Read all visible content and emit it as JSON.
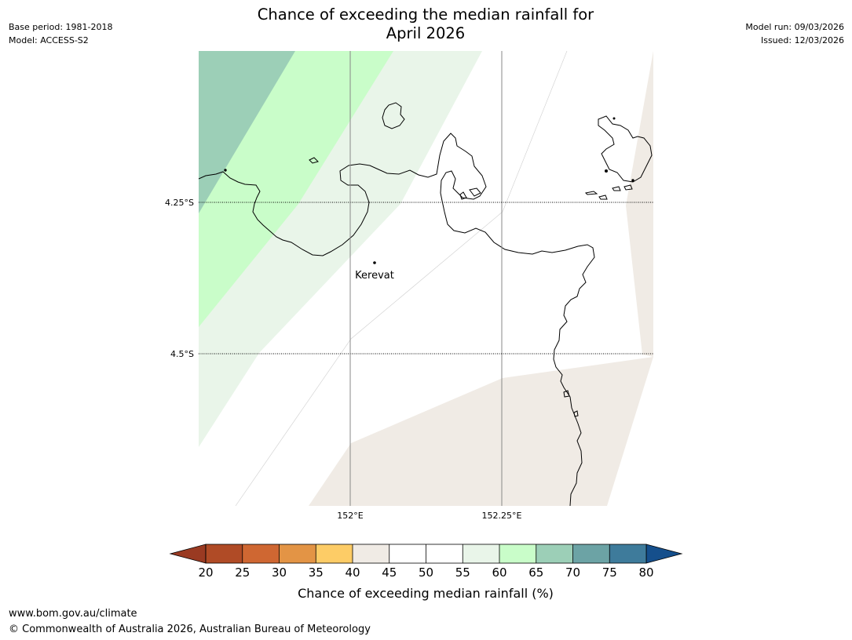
{
  "title": {
    "line1": "Chance of exceeding the median rainfall for",
    "line2": "April 2026"
  },
  "meta_left": {
    "base_period": "Base period: 1981-2018",
    "model": "Model: ACCESS-S2"
  },
  "meta_right": {
    "model_run": "Model run: 09/03/2026",
    "issued": "Issued: 12/03/2026"
  },
  "map": {
    "lat_labels": [
      "4.25°S",
      "4.5°S"
    ],
    "lon_labels": [
      "152°E",
      "152.25°E"
    ],
    "place": {
      "name": "Kerevat"
    }
  },
  "colorbar": {
    "title": "Chance of exceeding median rainfall (%)",
    "ticks": [
      "20",
      "25",
      "30",
      "35",
      "40",
      "45",
      "50",
      "55",
      "60",
      "65",
      "70",
      "75",
      "80"
    ],
    "under_color": "#9a3a22",
    "over_color": "#154f8c",
    "bins": [
      {
        "from": 20,
        "to": 25,
        "color": "#b04b26"
      },
      {
        "from": 25,
        "to": 30,
        "color": "#cf6732"
      },
      {
        "from": 30,
        "to": 35,
        "color": "#e39445"
      },
      {
        "from": 35,
        "to": 40,
        "color": "#fdcc66"
      },
      {
        "from": 40,
        "to": 45,
        "color": "#f0ebe5"
      },
      {
        "from": 45,
        "to": 50,
        "color": "#ffffff"
      },
      {
        "from": 50,
        "to": 55,
        "color": "#ffffff"
      },
      {
        "from": 55,
        "to": 60,
        "color": "#e9f5e9"
      },
      {
        "from": 60,
        "to": 65,
        "color": "#c9fdc9"
      },
      {
        "from": 65,
        "to": 70,
        "color": "#9ccfb7"
      },
      {
        "from": 70,
        "to": 75,
        "color": "#6ca3a5"
      },
      {
        "from": 75,
        "to": 80,
        "color": "#3e7b9b"
      }
    ]
  },
  "footer": {
    "url": "www.bom.gov.au/climate",
    "copyright": "© Commonwealth of Australia 2026, Australian Bureau of Meteorology"
  }
}
